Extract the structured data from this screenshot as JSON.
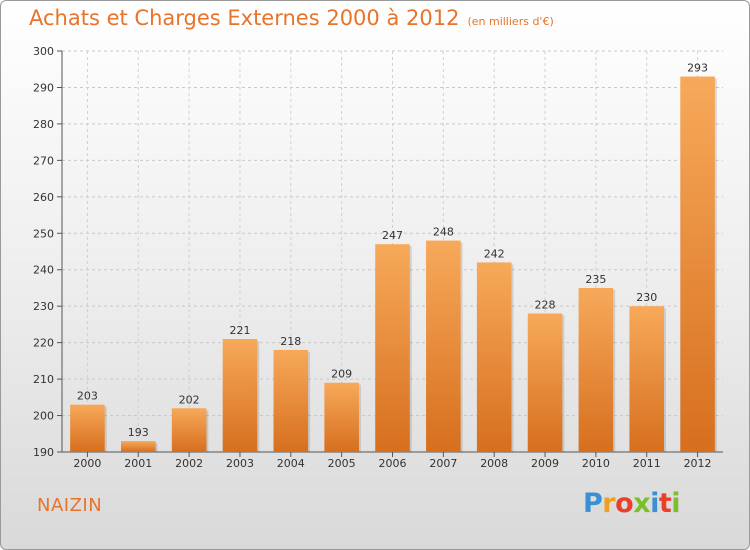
{
  "header": {
    "title": "Achats et Charges Externes 2000 à 2012",
    "subtitle": "(en milliers d'€)"
  },
  "footer": {
    "commune": "NAIZIN",
    "logo_text": "Proxiti"
  },
  "colors": {
    "bar_light": "#f7a95a",
    "bar_dark": "#d66f1e",
    "accent": "#e8732a"
  },
  "chart_data": {
    "type": "bar",
    "title": "Achats et Charges Externes 2000 à 2012",
    "subtitle": "(en milliers d'€)",
    "categories": [
      "2000",
      "2001",
      "2002",
      "2003",
      "2004",
      "2005",
      "2006",
      "2007",
      "2008",
      "2009",
      "2010",
      "2011",
      "2012"
    ],
    "values": [
      203,
      193,
      202,
      221,
      218,
      209,
      247,
      248,
      242,
      228,
      235,
      230,
      293
    ],
    "ylim": [
      190,
      300
    ],
    "yticks": [
      190,
      200,
      210,
      220,
      230,
      240,
      250,
      260,
      270,
      280,
      290,
      300
    ],
    "grid": true,
    "data_labels": true
  }
}
